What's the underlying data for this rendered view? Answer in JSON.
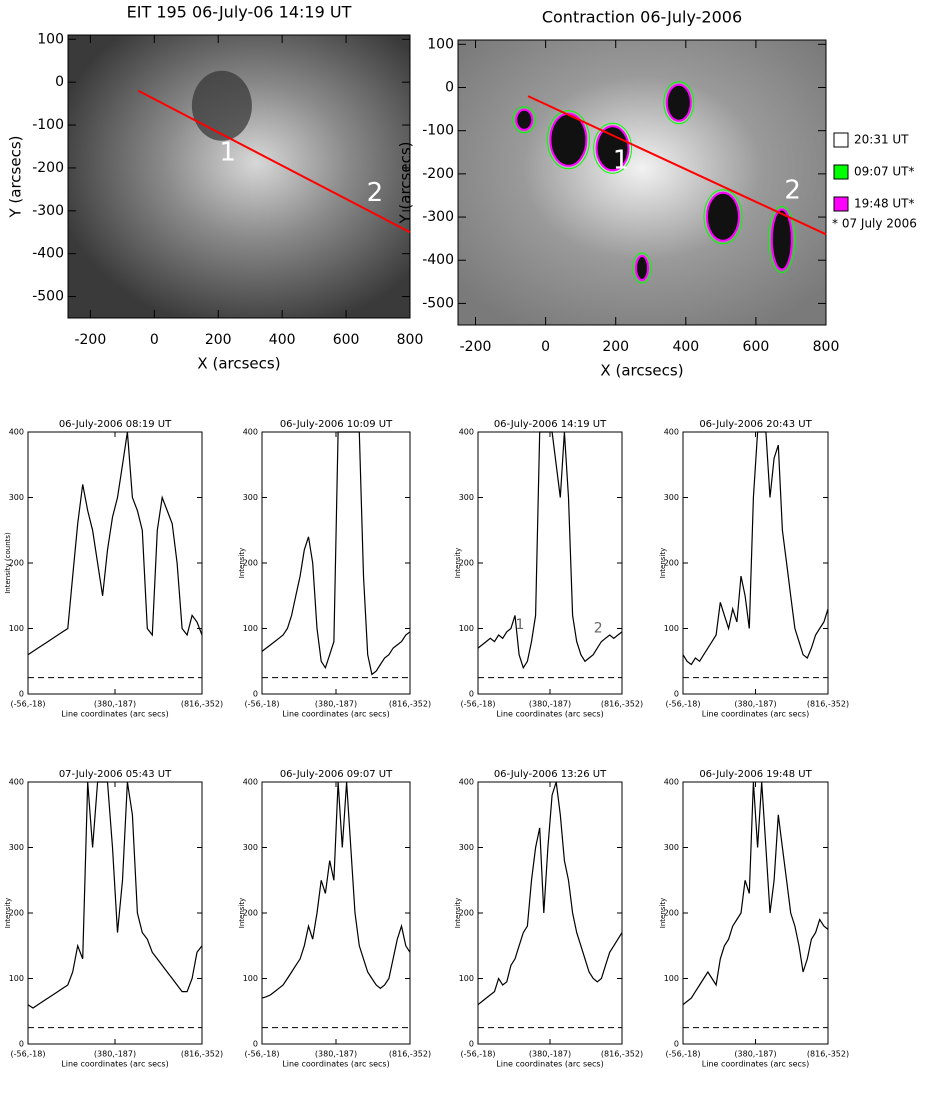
{
  "chart_data": [
    {
      "type": "image",
      "title": "EIT 195 06-July-06 14:19 UT",
      "xlabel": "X (arcsecs)",
      "ylabel": "Y (arcsecs)",
      "xlim": [
        -270,
        800
      ],
      "ylim": [
        -550,
        110
      ],
      "xticks": [
        -200,
        0,
        200,
        400,
        600,
        800
      ],
      "yticks": [
        -500,
        -400,
        -300,
        -200,
        -100,
        0,
        100
      ],
      "line": {
        "x": [
          -50,
          800
        ],
        "y": [
          -20,
          -350
        ],
        "color": "#ff0000"
      },
      "annotations": [
        {
          "text": "1",
          "x": 230,
          "y": -165
        },
        {
          "text": "2",
          "x": 690,
          "y": -260
        }
      ]
    },
    {
      "type": "image",
      "title": "Contraction 06-July-2006",
      "xlabel": "X (arcsecs)",
      "ylabel": "Y (arcsecs)",
      "xlim": [
        -250,
        800
      ],
      "ylim": [
        -550,
        110
      ],
      "xticks": [
        -200,
        0,
        200,
        400,
        600,
        800
      ],
      "yticks": [
        -500,
        -400,
        -300,
        -200,
        -100,
        0,
        100
      ],
      "line": {
        "x": [
          -50,
          800
        ],
        "y": [
          -20,
          -340
        ],
        "color": "#ff0000"
      },
      "annotations": [
        {
          "text": "1",
          "x": 215,
          "y": -170
        },
        {
          "text": "2",
          "x": 705,
          "y": -240
        }
      ],
      "legend": [
        {
          "name": "20:31 UT",
          "color": "#ffffff"
        },
        {
          "name": "09:07 UT*",
          "color": "#00ff00"
        },
        {
          "name": "19:48 UT*",
          "color": "#ff00ff"
        }
      ],
      "legend_note": "* 07 July 2006"
    },
    {
      "type": "line",
      "title": "06-July-2006 08:19 UT",
      "xlabel": "Line coordinates (arc secs)",
      "ylabel": "Intensity (counts)",
      "xlim": [
        0,
        910
      ],
      "ylim": [
        0,
        400
      ],
      "yticks": [
        0,
        100,
        200,
        300,
        400
      ],
      "xticks": [
        {
          "value": 0,
          "label": "(-56,-18)"
        },
        {
          "value": 455,
          "label": "(380,-187)"
        },
        {
          "value": 910,
          "label": "(816,-352)"
        }
      ],
      "hline": 25,
      "color": "#000000",
      "x": [
        0,
        26,
        52,
        78,
        104,
        130,
        156,
        182,
        208,
        234,
        260,
        286,
        312,
        338,
        364,
        390,
        416,
        442,
        468,
        494,
        520,
        546,
        572,
        598,
        624,
        650,
        676,
        702,
        728,
        754,
        780,
        806,
        832,
        858,
        884,
        910
      ],
      "values": [
        60,
        65,
        70,
        75,
        80,
        85,
        90,
        95,
        100,
        180,
        260,
        320,
        280,
        250,
        200,
        150,
        220,
        270,
        300,
        350,
        400,
        300,
        280,
        250,
        100,
        90,
        250,
        300,
        280,
        260,
        200,
        100,
        90,
        120,
        110,
        90
      ]
    },
    {
      "type": "line",
      "title": "06-July-2006 10:09 UT",
      "xlabel": "Line coordinates (arc secs)",
      "ylabel": "Intensity",
      "xlim": [
        0,
        910
      ],
      "ylim": [
        0,
        400
      ],
      "yticks": [
        0,
        100,
        200,
        300,
        400
      ],
      "xticks": [
        {
          "value": 0,
          "label": "(-56,-18)"
        },
        {
          "value": 455,
          "label": "(380,-187)"
        },
        {
          "value": 910,
          "label": "(816,-352)"
        }
      ],
      "hline": 25,
      "color": "#000000",
      "x": [
        0,
        26,
        52,
        78,
        104,
        130,
        156,
        182,
        208,
        234,
        260,
        286,
        312,
        338,
        364,
        390,
        416,
        442,
        468,
        494,
        520,
        546,
        572,
        598,
        624,
        650,
        676,
        702,
        728,
        754,
        780,
        806,
        832,
        858,
        884,
        910
      ],
      "values": [
        65,
        70,
        75,
        80,
        85,
        90,
        100,
        120,
        150,
        180,
        220,
        240,
        200,
        100,
        50,
        40,
        60,
        80,
        400,
        400,
        400,
        400,
        400,
        400,
        180,
        60,
        30,
        35,
        45,
        55,
        60,
        70,
        75,
        80,
        90,
        95
      ]
    },
    {
      "type": "line",
      "title": "06-July-2006 14:19 UT",
      "xlabel": "Line coordinates (arc secs)",
      "ylabel": "Intensity",
      "xlim": [
        0,
        910
      ],
      "ylim": [
        0,
        400
      ],
      "yticks": [
        0,
        100,
        200,
        300,
        400
      ],
      "xticks": [
        {
          "value": 0,
          "label": "(-56,-18)"
        },
        {
          "value": 455,
          "label": "(380,-187)"
        },
        {
          "value": 910,
          "label": "(816,-352)"
        }
      ],
      "hline": 25,
      "color": "#000000",
      "annotations": [
        {
          "text": "1",
          "x": 265,
          "y": 105
        },
        {
          "text": "2",
          "x": 760,
          "y": 100
        }
      ],
      "x": [
        0,
        26,
        52,
        78,
        104,
        130,
        156,
        182,
        208,
        234,
        260,
        286,
        312,
        338,
        364,
        390,
        416,
        442,
        468,
        494,
        520,
        546,
        572,
        598,
        624,
        650,
        676,
        702,
        728,
        754,
        780,
        806,
        832,
        858,
        884,
        910
      ],
      "values": [
        70,
        75,
        80,
        85,
        80,
        90,
        85,
        95,
        100,
        120,
        60,
        40,
        50,
        80,
        120,
        400,
        400,
        400,
        400,
        350,
        300,
        400,
        300,
        120,
        80,
        60,
        50,
        55,
        60,
        70,
        80,
        85,
        90,
        85,
        90,
        95
      ]
    },
    {
      "type": "line",
      "title": "06-July-2006 20:43 UT",
      "xlabel": "Line coordinates (arc secs)",
      "ylabel": "Intensity",
      "xlim": [
        0,
        910
      ],
      "ylim": [
        0,
        400
      ],
      "yticks": [
        0,
        100,
        200,
        300,
        400
      ],
      "xticks": [
        {
          "value": 0,
          "label": "(-56,-18)"
        },
        {
          "value": 455,
          "label": "(380,-187)"
        },
        {
          "value": 910,
          "label": "(816,-352)"
        }
      ],
      "hline": 25,
      "color": "#000000",
      "x": [
        0,
        26,
        52,
        78,
        104,
        130,
        156,
        182,
        208,
        234,
        260,
        286,
        312,
        338,
        364,
        390,
        416,
        442,
        468,
        494,
        520,
        546,
        572,
        598,
        624,
        650,
        676,
        702,
        728,
        754,
        780,
        806,
        832,
        858,
        884,
        910
      ],
      "values": [
        60,
        50,
        45,
        55,
        50,
        60,
        70,
        80,
        90,
        140,
        120,
        100,
        130,
        110,
        180,
        150,
        100,
        300,
        400,
        400,
        400,
        300,
        360,
        380,
        250,
        200,
        150,
        100,
        80,
        60,
        55,
        70,
        90,
        100,
        110,
        130
      ]
    },
    {
      "type": "line",
      "title": "07-July-2006 05:43 UT",
      "xlabel": "Line coordinates (arc secs)",
      "ylabel": "Intensity",
      "xlim": [
        0,
        910
      ],
      "ylim": [
        0,
        400
      ],
      "yticks": [
        0,
        100,
        200,
        300,
        400
      ],
      "xticks": [
        {
          "value": 0,
          "label": "(-56,-18)"
        },
        {
          "value": 455,
          "label": "(380,-187)"
        },
        {
          "value": 910,
          "label": "(816,-352)"
        }
      ],
      "hline": 25,
      "color": "#000000",
      "x": [
        0,
        26,
        52,
        78,
        104,
        130,
        156,
        182,
        208,
        234,
        260,
        286,
        312,
        338,
        364,
        390,
        416,
        442,
        468,
        494,
        520,
        546,
        572,
        598,
        624,
        650,
        676,
        702,
        728,
        754,
        780,
        806,
        832,
        858,
        884,
        910
      ],
      "values": [
        60,
        55,
        60,
        65,
        70,
        75,
        80,
        85,
        90,
        110,
        150,
        130,
        400,
        300,
        400,
        400,
        400,
        300,
        170,
        250,
        400,
        350,
        200,
        170,
        160,
        140,
        130,
        120,
        110,
        100,
        90,
        80,
        80,
        100,
        140,
        150
      ]
    },
    {
      "type": "line",
      "title": "06-July-2006 09:07 UT",
      "xlabel": "Line coordinates (arc secs)",
      "ylabel": "Intensity",
      "xlim": [
        0,
        910
      ],
      "ylim": [
        0,
        400
      ],
      "yticks": [
        0,
        100,
        200,
        300,
        400
      ],
      "xticks": [
        {
          "value": 0,
          "label": "(-56,-18)"
        },
        {
          "value": 455,
          "label": "(380,-187)"
        },
        {
          "value": 910,
          "label": "(816,-352)"
        }
      ],
      "hline": 25,
      "color": "#000000",
      "x": [
        0,
        26,
        52,
        78,
        104,
        130,
        156,
        182,
        208,
        234,
        260,
        286,
        312,
        338,
        364,
        390,
        416,
        442,
        468,
        494,
        520,
        546,
        572,
        598,
        624,
        650,
        676,
        702,
        728,
        754,
        780,
        806,
        832,
        858,
        884,
        910
      ],
      "values": [
        70,
        72,
        75,
        80,
        85,
        90,
        100,
        110,
        120,
        130,
        150,
        180,
        160,
        200,
        250,
        230,
        280,
        250,
        400,
        300,
        400,
        300,
        200,
        150,
        130,
        110,
        100,
        90,
        85,
        90,
        100,
        130,
        160,
        180,
        150,
        140
      ]
    },
    {
      "type": "line",
      "title": "06-July-2006 13:26 UT",
      "xlabel": "Line coordinates (arc secs)",
      "ylabel": "Intensity",
      "xlim": [
        0,
        910
      ],
      "ylim": [
        0,
        400
      ],
      "yticks": [
        0,
        100,
        200,
        300,
        400
      ],
      "xticks": [
        {
          "value": 0,
          "label": "(-56,-18)"
        },
        {
          "value": 455,
          "label": "(380,-187)"
        },
        {
          "value": 910,
          "label": "(816,-352)"
        }
      ],
      "hline": 25,
      "color": "#000000",
      "x": [
        0,
        26,
        52,
        78,
        104,
        130,
        156,
        182,
        208,
        234,
        260,
        286,
        312,
        338,
        364,
        390,
        416,
        442,
        468,
        494,
        520,
        546,
        572,
        598,
        624,
        650,
        676,
        702,
        728,
        754,
        780,
        806,
        832,
        858,
        884,
        910
      ],
      "values": [
        60,
        65,
        70,
        75,
        80,
        100,
        90,
        95,
        120,
        130,
        150,
        170,
        180,
        250,
        300,
        330,
        200,
        300,
        380,
        400,
        350,
        280,
        250,
        200,
        170,
        150,
        130,
        110,
        100,
        95,
        100,
        120,
        140,
        150,
        160,
        170
      ]
    },
    {
      "type": "line",
      "title": "06-July-2006 19:48 UT",
      "xlabel": "Line coordinates (arc secs)",
      "ylabel": "Intensity",
      "xlim": [
        0,
        910
      ],
      "ylim": [
        0,
        400
      ],
      "yticks": [
        0,
        100,
        200,
        300,
        400
      ],
      "xticks": [
        {
          "value": 0,
          "label": "(-56,-18)"
        },
        {
          "value": 455,
          "label": "(380,-187)"
        },
        {
          "value": 910,
          "label": "(816,-352)"
        }
      ],
      "hline": 25,
      "color": "#000000",
      "x": [
        0,
        26,
        52,
        78,
        104,
        130,
        156,
        182,
        208,
        234,
        260,
        286,
        312,
        338,
        364,
        390,
        416,
        442,
        468,
        494,
        520,
        546,
        572,
        598,
        624,
        650,
        676,
        702,
        728,
        754,
        780,
        806,
        832,
        858,
        884,
        910
      ],
      "values": [
        60,
        65,
        70,
        80,
        90,
        100,
        110,
        100,
        90,
        130,
        150,
        160,
        180,
        190,
        200,
        250,
        230,
        400,
        300,
        400,
        300,
        200,
        250,
        350,
        300,
        250,
        200,
        180,
        150,
        110,
        130,
        160,
        170,
        190,
        180,
        175
      ]
    }
  ]
}
